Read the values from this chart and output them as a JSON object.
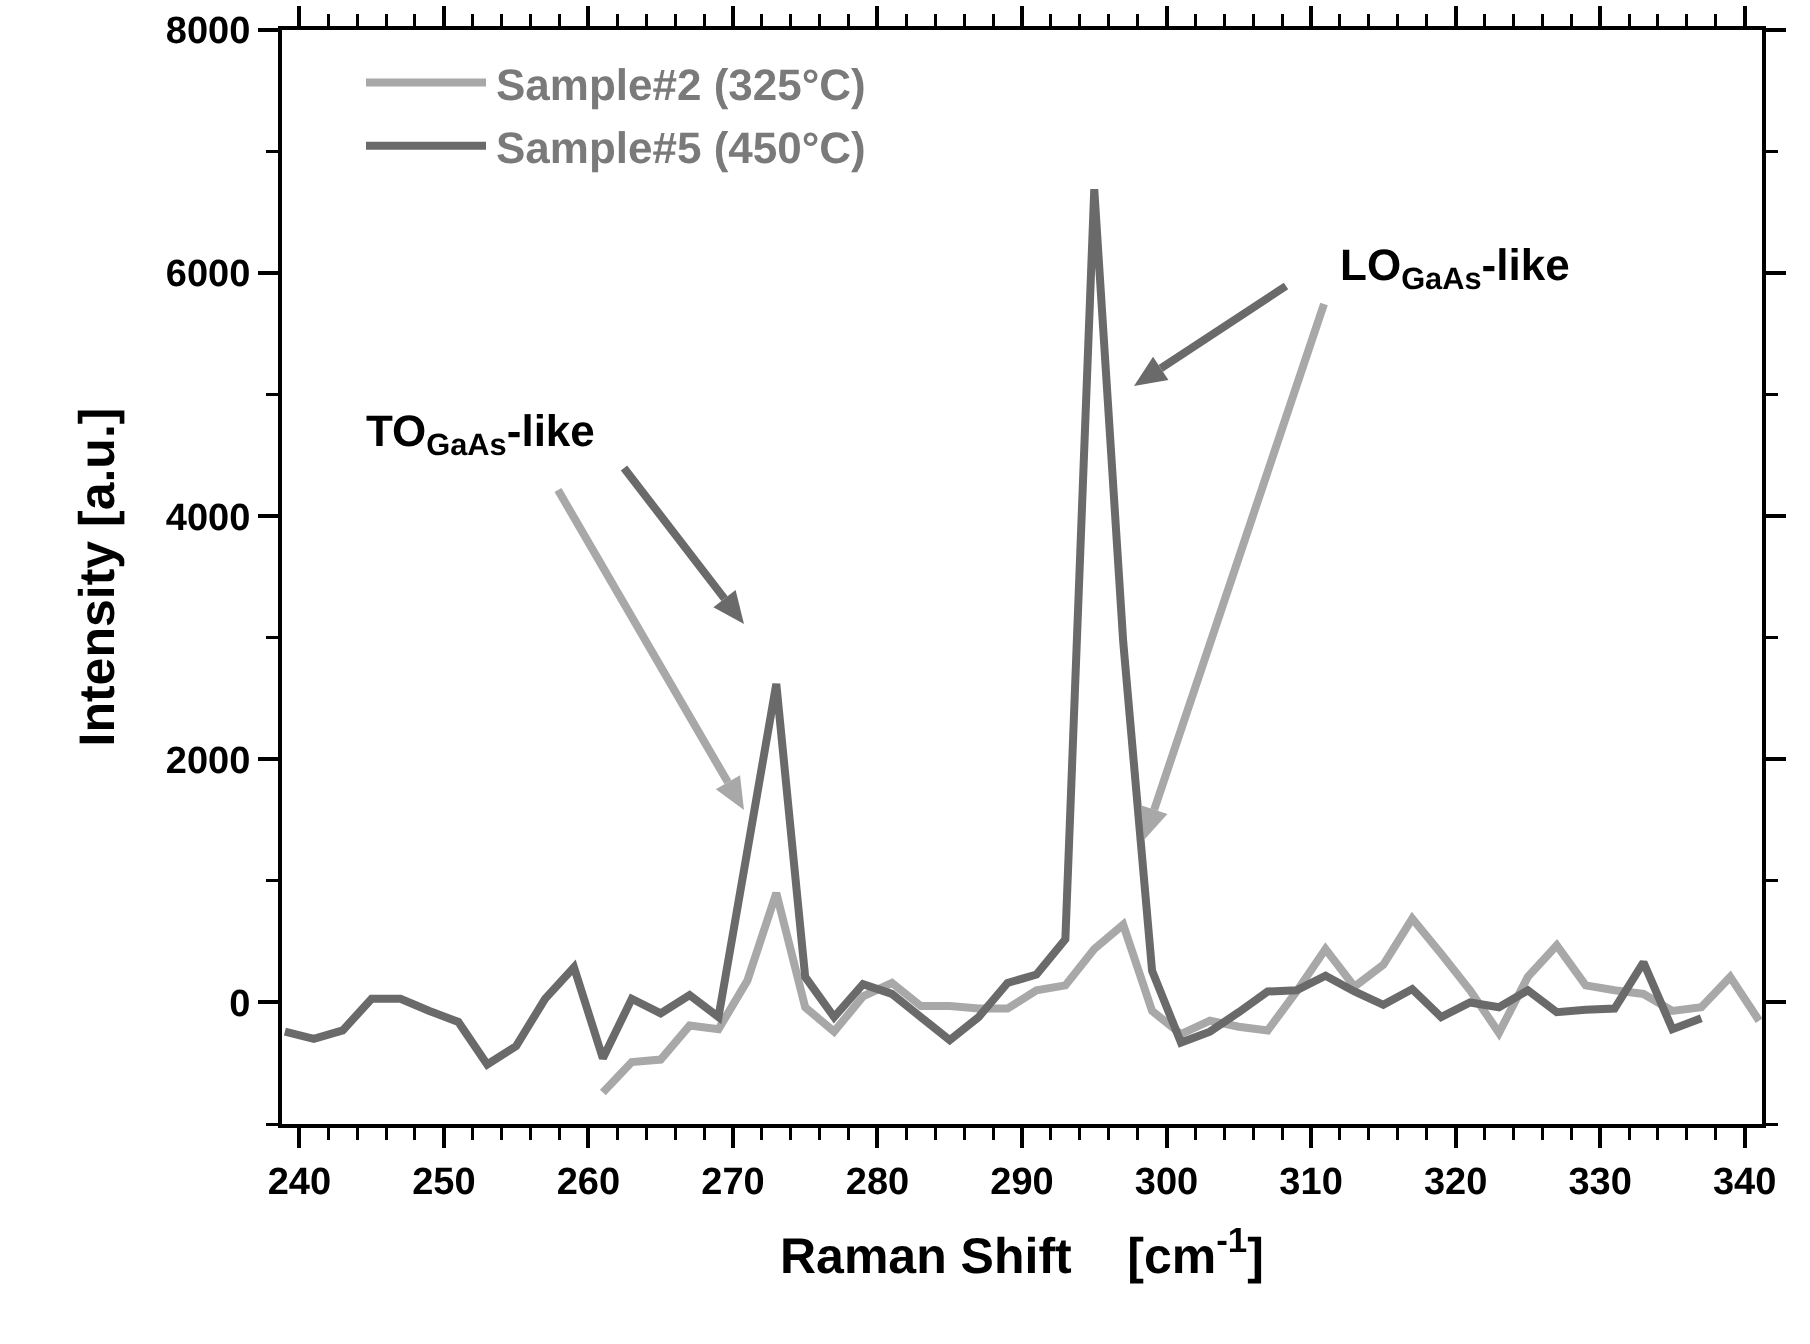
{
  "chart_data": {
    "type": "line",
    "xlabel": "Raman Shift    [cm$^{-1}$]",
    "ylabel": "Intensity [a.u.]",
    "xlim": [
      238.8,
      341.2
    ],
    "xticks": [
      240,
      250,
      260,
      270,
      280,
      290,
      300,
      310,
      320,
      330,
      340
    ],
    "ylim": [
      -1000,
      8000
    ],
    "yticks": [
      0,
      2000,
      4000,
      6000,
      8000
    ],
    "grid": false,
    "legend": "top left",
    "marker": "none",
    "line_style": "solid",
    "series": [
      {
        "name": "Sample#2 (325°C)",
        "color": "#a8a8a8",
        "x": [
          261,
          263,
          265,
          267,
          269,
          271,
          273,
          275,
          277,
          279,
          281,
          283,
          285,
          287,
          289,
          291,
          293,
          295,
          297,
          299,
          301,
          303,
          305,
          307,
          309,
          311,
          313,
          315,
          317,
          319,
          321,
          323,
          325,
          327,
          329,
          331,
          333,
          335,
          337,
          339,
          341
        ],
        "values": [
          -740,
          -490,
          -470,
          -190,
          -220,
          180,
          900,
          -40,
          -240,
          50,
          160,
          -30,
          -30,
          -50,
          -50,
          100,
          140,
          440,
          640,
          -70,
          -260,
          -150,
          -200,
          -230,
          90,
          440,
          130,
          310,
          690,
          400,
          100,
          -250,
          210,
          470,
          140,
          100,
          70,
          -70,
          -40,
          210,
          -150
        ]
      },
      {
        "name": "Sample#5 (450°C)",
        "color": "#6a6a6a",
        "x": [
          239,
          241,
          243,
          245,
          247,
          249,
          251,
          253,
          255,
          257,
          259,
          261,
          263,
          265,
          267,
          269,
          271,
          273,
          275,
          277,
          279,
          281,
          283,
          285,
          287,
          289,
          291,
          293,
          295,
          297,
          299,
          301,
          303,
          305,
          307,
          309,
          311,
          313,
          315,
          317,
          319,
          321,
          323,
          325,
          327,
          329,
          331,
          333,
          335,
          337
        ],
        "values": [
          -240,
          -300,
          -230,
          30,
          30,
          -70,
          -160,
          -510,
          -360,
          30,
          290,
          -460,
          30,
          -90,
          60,
          -120,
          1250,
          2620,
          210,
          -120,
          150,
          70,
          -120,
          -310,
          -120,
          160,
          230,
          520,
          6690,
          2970,
          260,
          -330,
          -240,
          -80,
          90,
          100,
          220,
          90,
          -20,
          110,
          -120,
          0,
          -40,
          100,
          -80,
          -60,
          -50,
          330,
          -220,
          -130
        ]
      }
    ],
    "annotations": [
      "TO$_{GaAs}$-like",
      "LO$_{GaAs}$-like"
    ]
  }
}
